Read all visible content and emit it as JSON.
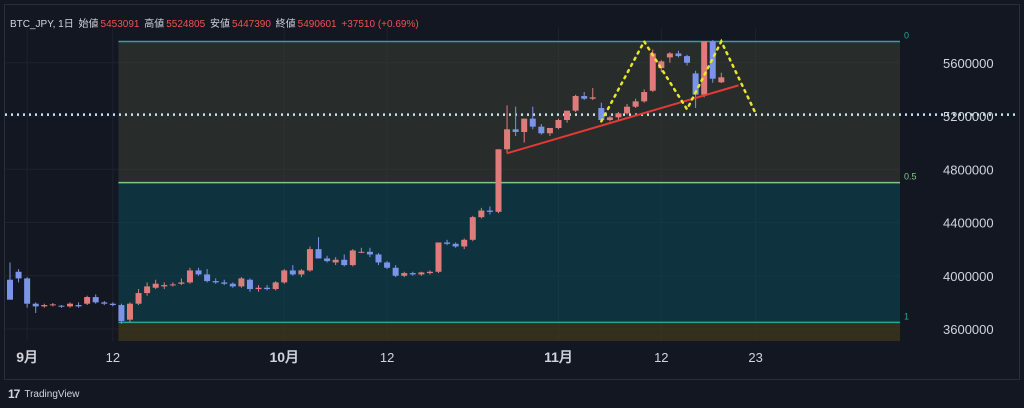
{
  "header": {
    "symbol": "BTC_JPY, 1日",
    "open_label": "始値",
    "open": "5453091",
    "high_label": "高値",
    "high": "5524805",
    "low_label": "安値",
    "low": "5447390",
    "close_label": "終値",
    "close": "5490601",
    "change": "+37510 (+0.69%)"
  },
  "footer": {
    "logo": "17",
    "brand": "TradingView"
  },
  "chart_data": {
    "type": "candlestick",
    "symbol": "BTC_JPY",
    "interval": "1日",
    "y_axis": {
      "ticks": [
        3600000,
        4000000,
        4400000,
        4800000,
        5200000,
        5600000
      ],
      "range": [
        3500000,
        5900000
      ],
      "position": "right"
    },
    "x_axis": {
      "tick_labels": [
        "9月",
        "12",
        "10月",
        "12",
        "11月",
        "12",
        "23"
      ],
      "tick_day_index": [
        2,
        12,
        32,
        44,
        64,
        76,
        87
      ]
    },
    "colors": {
      "up": "#e07b7b",
      "down": "#7b93e8",
      "fib_line_top": "#26a69a",
      "fib_line_mid": "#81c784",
      "trend": "#e53935",
      "pattern": "#e6e62a",
      "level": "#c8e4f2"
    },
    "candles": [
      [
        3970000,
        4100000,
        3830000,
        3820000
      ],
      [
        4030000,
        4050000,
        3950000,
        3980000
      ],
      [
        3980000,
        3990000,
        3760000,
        3790000
      ],
      [
        3790000,
        3800000,
        3720000,
        3770000
      ],
      [
        3770000,
        3790000,
        3760000,
        3780000
      ],
      [
        3780000,
        3795000,
        3770000,
        3785000
      ],
      [
        3775000,
        3780000,
        3760000,
        3768000
      ],
      [
        3770000,
        3800000,
        3760000,
        3790000
      ],
      [
        3780000,
        3800000,
        3760000,
        3770000
      ],
      [
        3790000,
        3850000,
        3780000,
        3840000
      ],
      [
        3840000,
        3860000,
        3790000,
        3800000
      ],
      [
        3800000,
        3810000,
        3780000,
        3790000
      ],
      [
        3790000,
        3800000,
        3770000,
        3780000
      ],
      [
        3780000,
        3790000,
        3640000,
        3660000
      ],
      [
        3670000,
        3800000,
        3650000,
        3790000
      ],
      [
        3790000,
        3900000,
        3780000,
        3870000
      ],
      [
        3870000,
        3950000,
        3850000,
        3920000
      ],
      [
        3910000,
        3970000,
        3900000,
        3940000
      ],
      [
        3920000,
        3950000,
        3900000,
        3930000
      ],
      [
        3930000,
        3950000,
        3920000,
        3935000
      ],
      [
        3940000,
        3980000,
        3930000,
        3950000
      ],
      [
        3950000,
        4060000,
        3940000,
        4040000
      ],
      [
        4040000,
        4060000,
        4000000,
        4010000
      ],
      [
        4010000,
        4050000,
        3950000,
        3960000
      ],
      [
        3960000,
        3980000,
        3940000,
        3950000
      ],
      [
        3950000,
        3970000,
        3930000,
        3940000
      ],
      [
        3940000,
        3950000,
        3910000,
        3920000
      ],
      [
        3920000,
        3990000,
        3910000,
        3980000
      ],
      [
        3970000,
        3980000,
        3880000,
        3900000
      ],
      [
        3900000,
        3930000,
        3880000,
        3910000
      ],
      [
        3910000,
        3930000,
        3890000,
        3900000
      ],
      [
        3900000,
        3960000,
        3890000,
        3950000
      ],
      [
        3950000,
        4050000,
        3940000,
        4040000
      ],
      [
        4040000,
        4080000,
        4000000,
        4010000
      ],
      [
        4010000,
        4050000,
        3990000,
        4040000
      ],
      [
        4040000,
        4220000,
        4030000,
        4200000
      ],
      [
        4200000,
        4290000,
        4130000,
        4130000
      ],
      [
        4130000,
        4150000,
        4100000,
        4110000
      ],
      [
        4100000,
        4140000,
        4080000,
        4120000
      ],
      [
        4120000,
        4160000,
        4070000,
        4080000
      ],
      [
        4080000,
        4200000,
        4070000,
        4190000
      ],
      [
        4180000,
        4210000,
        4170000,
        4180000
      ],
      [
        4180000,
        4210000,
        4140000,
        4160000
      ],
      [
        4160000,
        4170000,
        4080000,
        4100000
      ],
      [
        4100000,
        4110000,
        4050000,
        4060000
      ],
      [
        4060000,
        4080000,
        3990000,
        4000000
      ],
      [
        4000000,
        4030000,
        3990000,
        4020000
      ],
      [
        4020000,
        4030000,
        4000000,
        4010000
      ],
      [
        4010000,
        4030000,
        4000000,
        4025000
      ],
      [
        4020000,
        4040000,
        4010000,
        4030000
      ],
      [
        4030000,
        4250000,
        4020000,
        4250000
      ],
      [
        4250000,
        4270000,
        4230000,
        4240000
      ],
      [
        4240000,
        4250000,
        4210000,
        4220000
      ],
      [
        4220000,
        4280000,
        4200000,
        4270000
      ],
      [
        4270000,
        4450000,
        4260000,
        4440000
      ],
      [
        4440000,
        4510000,
        4430000,
        4490000
      ],
      [
        4490000,
        4520000,
        4460000,
        4480000
      ],
      [
        4480000,
        4950000,
        4470000,
        4950000
      ],
      [
        4950000,
        5280000,
        4920000,
        5100000
      ],
      [
        5100000,
        5270000,
        5050000,
        5080000
      ],
      [
        5080000,
        5180000,
        5000000,
        5180000
      ],
      [
        5180000,
        5270000,
        5100000,
        5120000
      ],
      [
        5120000,
        5140000,
        5060000,
        5070000
      ],
      [
        5070000,
        5110000,
        5050000,
        5110000
      ],
      [
        5110000,
        5180000,
        5100000,
        5170000
      ],
      [
        5170000,
        5230000,
        5150000,
        5240000
      ],
      [
        5240000,
        5360000,
        5230000,
        5350000
      ],
      [
        5350000,
        5380000,
        5320000,
        5330000
      ],
      [
        5330000,
        5410000,
        5320000,
        5340000
      ],
      [
        5260000,
        5300000,
        5150000,
        5170000
      ],
      [
        5170000,
        5200000,
        5160000,
        5190000
      ],
      [
        5190000,
        5230000,
        5170000,
        5220000
      ],
      [
        5220000,
        5290000,
        5210000,
        5270000
      ],
      [
        5270000,
        5330000,
        5260000,
        5310000
      ],
      [
        5310000,
        5400000,
        5300000,
        5380000
      ],
      [
        5390000,
        5700000,
        5380000,
        5670000
      ],
      [
        5560000,
        5620000,
        5530000,
        5610000
      ],
      [
        5640000,
        5680000,
        5600000,
        5670000
      ],
      [
        5670000,
        5690000,
        5640000,
        5650000
      ],
      [
        5650000,
        5660000,
        5580000,
        5600000
      ],
      [
        5520000,
        5540000,
        5260000,
        5360000
      ],
      [
        5360000,
        5750000,
        5340000,
        5760000
      ],
      [
        5760000,
        5770000,
        5450000,
        5480000
      ],
      [
        5453091,
        5524805,
        5447390,
        5490601
      ]
    ],
    "fibonacci": {
      "levels": [
        {
          "label": "0",
          "price": 5760000
        },
        {
          "label": "0.5",
          "price": 4700000
        },
        {
          "label": "1",
          "price": 3650000
        }
      ],
      "start_day": 13
    },
    "horizontal_level": 5210000,
    "trend_line": [
      [
        58,
        4920000
      ],
      [
        85,
        5430000
      ]
    ],
    "pattern_path": [
      [
        69,
        5160000
      ],
      [
        74,
        5760000
      ],
      [
        79,
        5250000
      ],
      [
        83,
        5760000
      ],
      [
        87,
        5220000
      ]
    ]
  }
}
